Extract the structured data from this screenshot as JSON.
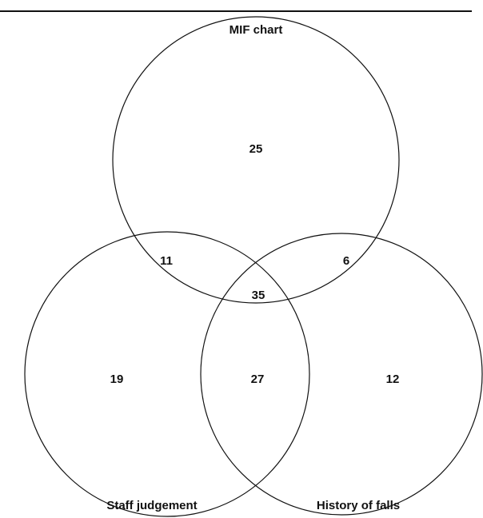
{
  "sets": [
    {
      "label": "MIF chart"
    },
    {
      "label": "Staff judgement"
    },
    {
      "label": "History of falls"
    }
  ],
  "regions": [
    {
      "sets": "MIF chart",
      "count": 25
    },
    {
      "sets": "MIF chart + Staff judgement",
      "count": 11
    },
    {
      "sets": "MIF chart + History of falls",
      "count": 6
    },
    {
      "sets": "All three",
      "count": 35
    },
    {
      "sets": "Staff judgement",
      "count": 19
    },
    {
      "sets": "Staff judgement + History of falls",
      "count": 27
    },
    {
      "sets": "History of falls",
      "count": 12
    }
  ]
}
